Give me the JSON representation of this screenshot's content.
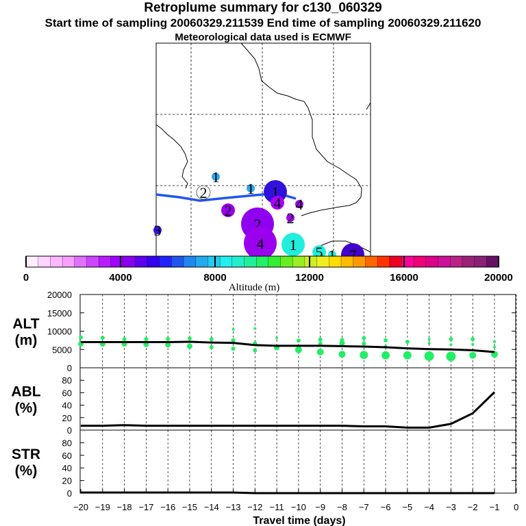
{
  "header": {
    "title": "Retroplume summary for c130_060329",
    "sampling_line": "Start time of sampling 20060329.211539     End time of sampling 20060329.211620",
    "met_line": "Meteorological data used is ECMWF"
  },
  "map": {
    "track_color": "#2255ee",
    "markers": [
      {
        "label": "1",
        "color": "#29a8ee",
        "size": 1
      },
      {
        "label": "1",
        "color": "#29a8ee",
        "size": 1
      },
      {
        "label": "1",
        "color": "#3311dd",
        "size": 3
      },
      {
        "label": "2",
        "color": "#ffffff",
        "size": 2
      },
      {
        "label": "2",
        "color": "#9900ee",
        "size": 2
      },
      {
        "label": "4",
        "color": "#aa00ff",
        "size": 2
      },
      {
        "label": "4",
        "color": "#9900ee",
        "size": 1
      },
      {
        "label": "2",
        "color": "#a000ee",
        "size": 1
      },
      {
        "label": "2",
        "color": "#8f00ee",
        "size": 4
      },
      {
        "label": "4",
        "color": "#9a00ee",
        "size": 4
      },
      {
        "label": "1",
        "color": "#22eedd",
        "size": 3
      },
      {
        "label": "5",
        "color": "#22eedd",
        "size": 2
      },
      {
        "label": "1",
        "color": "#22eedd",
        "size": 1
      },
      {
        "label": "7",
        "color": "#4400cc",
        "size": 3
      },
      {
        "label": "3",
        "color": "#3311dd",
        "size": 1
      }
    ]
  },
  "colorbar": {
    "label": "Altitude (m)",
    "tick_labels": [
      "0",
      "4000",
      "8000",
      "12000",
      "16000",
      "20000"
    ],
    "colors": [
      "#ffeeff",
      "#ffd5ff",
      "#ffb8ff",
      "#f6a0ff",
      "#e070ff",
      "#cc44ff",
      "#b71dff",
      "#a000ff",
      "#8800ee",
      "#5c00ee",
      "#3300ee",
      "#2222ff",
      "#2255ee",
      "#1e88ee",
      "#22aaee",
      "#22ccee",
      "#22eeee",
      "#22eecc",
      "#22ee99",
      "#22ee66",
      "#33ee33",
      "#66ee22",
      "#99ee22",
      "#ccee22",
      "#eeee22",
      "#ffdd00",
      "#ffbb00",
      "#ff9900",
      "#ff6600",
      "#ff3300",
      "#ee0022",
      "#ff0099",
      "#ee0077",
      "#dd0088",
      "#cc1199",
      "#bb2288",
      "#992277",
      "#882277",
      "#661166"
    ]
  },
  "chart_data": [
    {
      "type": "line",
      "panel": "ALT",
      "ylabel_line1": "ALT",
      "ylabel_line2": "(m)",
      "ylim": [
        0,
        20000
      ],
      "yticks": [
        "0",
        "5000",
        "10000",
        "15000",
        "20000"
      ],
      "xlim": [
        -20,
        0
      ],
      "mean_x": [
        -20,
        -19,
        -18,
        -17,
        -16,
        -15,
        -14,
        -13,
        -12,
        -11,
        -10,
        -9,
        -8,
        -7,
        -6,
        -5,
        -4,
        -3,
        -2,
        -1
      ],
      "mean_y": [
        7000,
        7000,
        7000,
        7000,
        7000,
        7100,
        6900,
        6800,
        6200,
        6000,
        6000,
        6000,
        5900,
        5800,
        5600,
        5300,
        5100,
        5000,
        4800,
        4300
      ],
      "marker_color": "#22ee66",
      "points": [
        {
          "x": -20,
          "y": 8300,
          "r": 3
        },
        {
          "x": -20,
          "y": 6500,
          "r": 4
        },
        {
          "x": -19,
          "y": 8200,
          "r": 3
        },
        {
          "x": -19,
          "y": 6500,
          "r": 4
        },
        {
          "x": -18,
          "y": 7800,
          "r": 3
        },
        {
          "x": -18,
          "y": 6500,
          "r": 4
        },
        {
          "x": -17,
          "y": 7800,
          "r": 3
        },
        {
          "x": -17,
          "y": 6400,
          "r": 4
        },
        {
          "x": -16,
          "y": 7900,
          "r": 3
        },
        {
          "x": -16,
          "y": 6300,
          "r": 4
        },
        {
          "x": -15,
          "y": 8000,
          "r": 3
        },
        {
          "x": -15,
          "y": 5900,
          "r": 4
        },
        {
          "x": -14,
          "y": 7800,
          "r": 3
        },
        {
          "x": -14,
          "y": 5600,
          "r": 3
        },
        {
          "x": -13,
          "y": 10500,
          "r": 2
        },
        {
          "x": -13,
          "y": 7500,
          "r": 3
        },
        {
          "x": -13,
          "y": 5200,
          "r": 3
        },
        {
          "x": -12,
          "y": 10700,
          "r": 2
        },
        {
          "x": -12,
          "y": 6700,
          "r": 3
        },
        {
          "x": -12,
          "y": 4800,
          "r": 3
        },
        {
          "x": -11,
          "y": 8100,
          "r": 2
        },
        {
          "x": -11,
          "y": 5500,
          "r": 4
        },
        {
          "x": -10,
          "y": 7400,
          "r": 3
        },
        {
          "x": -10,
          "y": 4900,
          "r": 5
        },
        {
          "x": -9,
          "y": 7700,
          "r": 3
        },
        {
          "x": -9,
          "y": 6600,
          "r": 3
        },
        {
          "x": -9,
          "y": 4300,
          "r": 5
        },
        {
          "x": -8,
          "y": 7600,
          "r": 3
        },
        {
          "x": -8,
          "y": 6700,
          "r": 4
        },
        {
          "x": -8,
          "y": 3700,
          "r": 5
        },
        {
          "x": -7,
          "y": 8100,
          "r": 3
        },
        {
          "x": -7,
          "y": 6600,
          "r": 3
        },
        {
          "x": -7,
          "y": 3500,
          "r": 6
        },
        {
          "x": -6,
          "y": 7500,
          "r": 3
        },
        {
          "x": -6,
          "y": 5900,
          "r": 2
        },
        {
          "x": -6,
          "y": 3400,
          "r": 6
        },
        {
          "x": -5,
          "y": 7100,
          "r": 3
        },
        {
          "x": -5,
          "y": 3400,
          "r": 6
        },
        {
          "x": -4,
          "y": 7800,
          "r": 2
        },
        {
          "x": -4,
          "y": 6700,
          "r": 2
        },
        {
          "x": -4,
          "y": 3200,
          "r": 7
        },
        {
          "x": -3,
          "y": 7800,
          "r": 3
        },
        {
          "x": -3,
          "y": 6300,
          "r": 2
        },
        {
          "x": -3,
          "y": 3100,
          "r": 7
        },
        {
          "x": -2,
          "y": 7800,
          "r": 3
        },
        {
          "x": -2,
          "y": 6400,
          "r": 2
        },
        {
          "x": -2,
          "y": 3400,
          "r": 5
        },
        {
          "x": -1,
          "y": 7100,
          "r": 2
        },
        {
          "x": -1,
          "y": 5700,
          "r": 2
        },
        {
          "x": -1,
          "y": 3700,
          "r": 5
        }
      ]
    },
    {
      "type": "line",
      "panel": "ABL",
      "ylabel_line1": "ABL",
      "ylabel_line2": "(%)",
      "ylim": [
        0,
        100
      ],
      "yticks": [
        "0",
        "20",
        "40",
        "60",
        "80"
      ],
      "x": [
        -20,
        -19,
        -18,
        -17,
        -16,
        -15,
        -14,
        -13,
        -12,
        -11,
        -10,
        -9,
        -8,
        -7,
        -6,
        -5,
        -4,
        -3,
        -2,
        -1
      ],
      "y": [
        7,
        7,
        8,
        7,
        7,
        7,
        7,
        7,
        7,
        7,
        7,
        7,
        7,
        6,
        6,
        4,
        4,
        10,
        27,
        61
      ]
    },
    {
      "type": "line",
      "panel": "STR",
      "ylabel_line1": "STR",
      "ylabel_line2": "(%)",
      "ylim": [
        0,
        100
      ],
      "yticks": [
        "0",
        "20",
        "40",
        "60",
        "80"
      ],
      "x": [
        -20,
        -19,
        -18,
        -17,
        -16,
        -15,
        -14,
        -13,
        -12,
        -11,
        -10,
        -9,
        -8,
        -7,
        -6,
        -5,
        -4,
        -3,
        -2,
        -1
      ],
      "y": [
        1,
        1,
        1,
        1,
        1,
        1,
        1,
        1,
        0,
        0,
        0,
        0,
        0,
        0,
        0,
        0,
        0,
        0,
        0,
        0
      ]
    }
  ],
  "xaxis": {
    "label": "Travel time (days)",
    "tick_labels": [
      "−20",
      "−19",
      "−18",
      "−17",
      "−16",
      "−15",
      "−14",
      "−13",
      "−12",
      "−11",
      "−10",
      "−9",
      "−8",
      "−7",
      "−6",
      "−5",
      "−4",
      "−3",
      "−2",
      "−1",
      "0"
    ]
  }
}
